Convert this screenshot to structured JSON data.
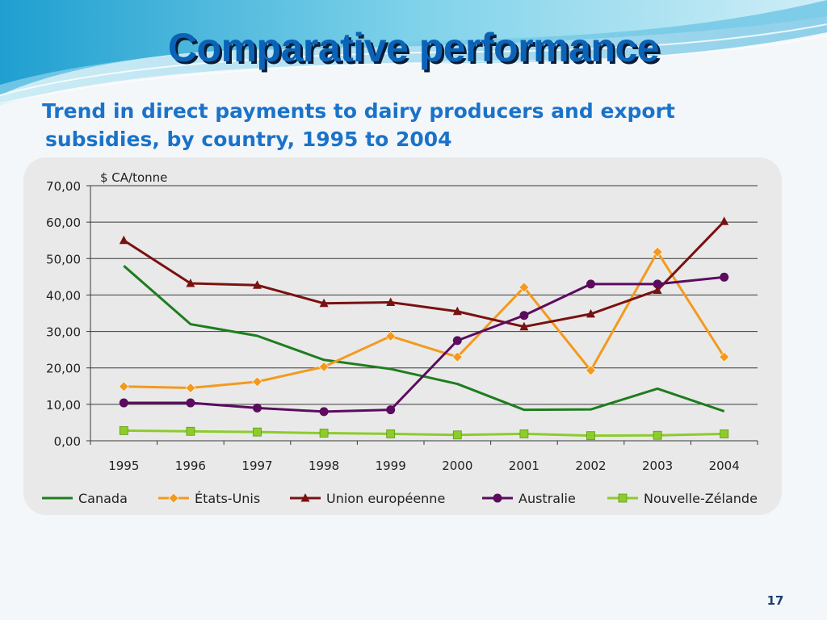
{
  "slide": {
    "title": "Comparative performance",
    "subtitle_line1": "Trend in direct payments to dairy producers and export",
    "subtitle_line2": "subsidies, by country, 1995 to 2004",
    "page_number": "17"
  },
  "colors": {
    "title": "#0b63b8",
    "subtitle": "#1a73c9",
    "Canada": "#1e7d1e",
    "Etats-Unis": "#f39a1e",
    "Union": "#7a1111",
    "Australie": "#5b0c5e",
    "NZ": "#8ccc2c"
  },
  "chart_data": {
    "type": "line",
    "title": "",
    "ylabel": "$ CA/tonne",
    "xlabel": "",
    "ylim": [
      0,
      70
    ],
    "yticks": [
      "0,00",
      "10,00",
      "20,00",
      "30,00",
      "40,00",
      "50,00",
      "60,00",
      "70,00"
    ],
    "categories": [
      "1995",
      "1996",
      "1997",
      "1998",
      "1999",
      "2000",
      "2001",
      "2002",
      "2003",
      "2004"
    ],
    "legend_position": "bottom",
    "series": [
      {
        "name": "Canada",
        "color": "#1e7d1e",
        "marker": "none",
        "values": [
          48.0,
          32.0,
          28.8,
          22.2,
          19.7,
          15.6,
          8.5,
          8.6,
          14.3,
          8.1
        ]
      },
      {
        "name": "États-Unis",
        "color": "#f39a1e",
        "marker": "diamond",
        "values": [
          14.9,
          14.5,
          16.2,
          20.3,
          28.7,
          23.0,
          42.1,
          19.3,
          51.8,
          23.0
        ]
      },
      {
        "name": "Union européenne",
        "color": "#7a1111",
        "marker": "triangle",
        "values": [
          55.0,
          43.2,
          42.7,
          37.7,
          38.0,
          35.5,
          31.3,
          34.8,
          41.3,
          60.2
        ]
      },
      {
        "name": "Australie",
        "color": "#5b0c5e",
        "marker": "circle",
        "values": [
          10.4,
          10.4,
          9.0,
          8.0,
          8.5,
          27.5,
          34.4,
          43.0,
          43.0,
          44.9
        ]
      },
      {
        "name": "Nouvelle-Zélande",
        "color": "#8ccc2c",
        "marker": "square",
        "values": [
          2.8,
          2.6,
          2.4,
          2.1,
          1.9,
          1.6,
          1.9,
          1.4,
          1.5,
          1.9
        ]
      }
    ]
  }
}
